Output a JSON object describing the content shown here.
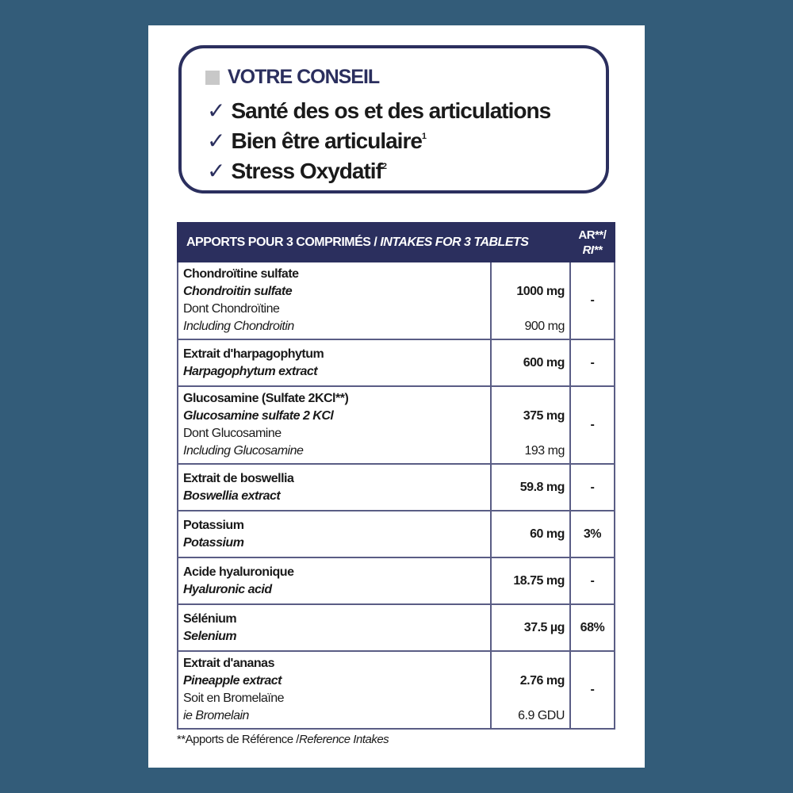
{
  "conseil": {
    "title": "VOTRE CONSEIL",
    "items": [
      {
        "text": "Santé des os et des articulations",
        "sup": ""
      },
      {
        "text": "Bien être articulaire",
        "sup": "1"
      },
      {
        "text": "Stress Oxydatif",
        "sup": "2"
      }
    ],
    "check_icon": "checkmark"
  },
  "table": {
    "header": {
      "fr": "APPORTS POUR 3 COMPRIMÉS / ",
      "en": "INTAKES FOR 3 TABLETS",
      "ar_line1": "AR**/",
      "ar_line2": "RI**"
    },
    "rows": [
      {
        "fr": "Chondroïtine sulfate",
        "en": "Chondroitin sulfate",
        "amount": "1000 mg",
        "sub_fr": "Dont Chondroïtine",
        "sub_en": "Including Chondroitin",
        "sub_amount": "900 mg",
        "ar": "-"
      },
      {
        "fr": "Extrait d'harpagophytum",
        "en": "Harpagophytum extract",
        "amount": "600 mg",
        "ar": "-"
      },
      {
        "fr": "Glucosamine  (Sulfate 2KCl**)",
        "en": "Glucosamine sulfate 2 KCl",
        "amount": "375 mg",
        "sub_fr": "Dont Glucosamine",
        "sub_en": "Including Glucosamine",
        "sub_amount": "193 mg",
        "ar": "-"
      },
      {
        "fr": "Extrait de boswellia",
        "en": "Boswellia extract",
        "amount": "59.8 mg",
        "ar": "-"
      },
      {
        "fr": "Potassium",
        "en": "Potassium",
        "amount": "60 mg",
        "ar": "3%"
      },
      {
        "fr": "Acide hyaluronique",
        "en": "Hyaluronic acid",
        "amount": "18.75 mg",
        "ar": "-"
      },
      {
        "fr": "Sélénium",
        "en": "Selenium",
        "amount": "37.5 µg",
        "ar": "68%"
      },
      {
        "fr": "Extrait d'ananas",
        "en": "Pineapple extract",
        "amount": "2.76 mg",
        "sub_fr": "Soit en Bromelaïne",
        "sub_en": "ie Bromelain",
        "sub_amount": "6.9 GDU",
        "ar": "-"
      }
    ]
  },
  "footnote": {
    "fr": "**Apports de Référence /",
    "en": "Reference Intakes"
  },
  "colors": {
    "background": "#335c79",
    "navy": "#2b2f5e",
    "card": "#ffffff"
  }
}
